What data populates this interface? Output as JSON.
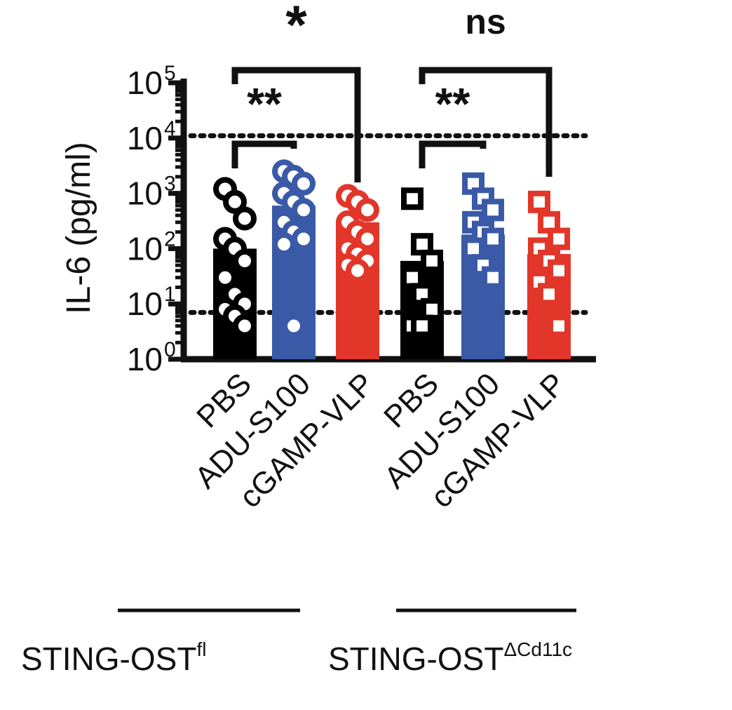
{
  "chart_data": {
    "type": "bar",
    "scale": "log",
    "ylabel": "IL-6 (pg/ml)",
    "ylim": [
      1,
      100000
    ],
    "yticks": [
      {
        "value": 1,
        "base": "10",
        "exp": "0"
      },
      {
        "value": 10,
        "base": "10",
        "exp": "1"
      },
      {
        "value": 100,
        "base": "10",
        "exp": "2"
      },
      {
        "value": 1000,
        "base": "10",
        "exp": "3"
      },
      {
        "value": 10000,
        "base": "10",
        "exp": "4"
      },
      {
        "value": 100000,
        "base": "10",
        "exp": "5"
      }
    ],
    "categories": [
      "PBS",
      "ADU-S100",
      "cGAMP-VLP",
      "PBS",
      "ADU-S100",
      "cGAMP-VLP"
    ],
    "bars": [
      {
        "category": "PBS",
        "group": "STING-OST^fl",
        "mean": 100,
        "color": "#000000",
        "marker": "circle",
        "points": [
          1200,
          700,
          350,
          150,
          100,
          60,
          30,
          15,
          10,
          8,
          6,
          4
        ]
      },
      {
        "category": "ADU-S100",
        "group": "STING-OST^fl",
        "mean": 600,
        "color": "#3a5aa8",
        "marker": "circle",
        "points": [
          2500,
          2000,
          1500,
          1000,
          700,
          500,
          300,
          200,
          150,
          120,
          4
        ]
      },
      {
        "category": "cGAMP-VLP",
        "group": "STING-OST^fl",
        "mean": 300,
        "color": "#e2362a",
        "marker": "circle",
        "points": [
          900,
          700,
          500,
          300,
          200,
          150,
          100,
          80,
          60,
          50,
          40
        ]
      },
      {
        "category": "PBS",
        "group": "STING-OST^ΔCd11c",
        "mean": 60,
        "color": "#000000",
        "marker": "square",
        "points": [
          800,
          120,
          60,
          30,
          15,
          8,
          4,
          4
        ]
      },
      {
        "category": "ADU-S100",
        "group": "STING-OST^ΔCd11c",
        "mean": 180,
        "color": "#3a5aa8",
        "marker": "square",
        "points": [
          1500,
          800,
          500,
          300,
          200,
          150,
          100,
          50,
          30
        ]
      },
      {
        "category": "cGAMP-VLP",
        "group": "STING-OST^ΔCd11c",
        "mean": 80,
        "color": "#e2362a",
        "marker": "square",
        "points": [
          700,
          300,
          150,
          100,
          60,
          40,
          25,
          15,
          4
        ]
      }
    ],
    "reference_lines": [
      {
        "value": 11000,
        "style": "dotted"
      },
      {
        "value": 7,
        "style": "dotted"
      }
    ],
    "comparisons": [
      {
        "from": 0,
        "to": 1,
        "label": "**"
      },
      {
        "from": 0,
        "to": 2,
        "label": "*"
      },
      {
        "from": 3,
        "to": 4,
        "label": "**"
      },
      {
        "from": 3,
        "to": 5,
        "label": "ns"
      }
    ],
    "groups": [
      {
        "name": "STING-OST",
        "sup": "fl",
        "bars": [
          0,
          1,
          2
        ]
      },
      {
        "name": "STING-OST",
        "sup": "ΔCd11c",
        "bars": [
          3,
          4,
          5
        ]
      }
    ],
    "grid": false,
    "legend": "none"
  }
}
